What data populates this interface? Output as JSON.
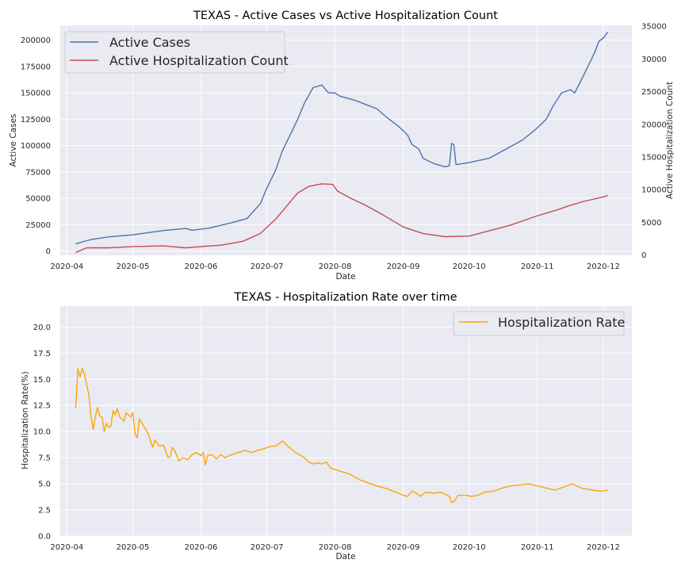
{
  "chart_data": [
    {
      "type": "line",
      "title": "TEXAS - Active Cases vs Active Hospitalization Count",
      "xlabel": "Date",
      "ylabel": "Active Cases",
      "y2label": "Active Hospitalization Count",
      "x_ticks": [
        "2020-04",
        "2020-05",
        "2020-06",
        "2020-07",
        "2020-08",
        "2020-09",
        "2020-10",
        "2020-11",
        "2020-12"
      ],
      "ylim": [
        -4000,
        214000
      ],
      "y_ticks": [
        0,
        25000,
        50000,
        75000,
        100000,
        125000,
        150000,
        175000,
        200000
      ],
      "y2lim": [
        -50,
        35150
      ],
      "y2_ticks": [
        0,
        5000,
        10000,
        15000,
        20000,
        25000,
        30000,
        35000
      ],
      "grid": true,
      "legend_position": "top-left",
      "series": [
        {
          "name": "Active Cases",
          "axis": "left",
          "color": "#4c72b0",
          "points": [
            [
              "2020-04-05",
              7000
            ],
            [
              "2020-04-12",
              11000
            ],
            [
              "2020-04-20",
              13500
            ],
            [
              "2020-05-01",
              15500
            ],
            [
              "2020-05-15",
              19500
            ],
            [
              "2020-05-25",
              21500
            ],
            [
              "2020-05-28",
              19800
            ],
            [
              "2020-06-05",
              22000
            ],
            [
              "2020-06-15",
              27000
            ],
            [
              "2020-06-22",
              31000
            ],
            [
              "2020-06-28",
              45000
            ],
            [
              "2020-07-01",
              60000
            ],
            [
              "2020-07-05",
              77000
            ],
            [
              "2020-07-08",
              95000
            ],
            [
              "2020-07-12",
              112000
            ],
            [
              "2020-07-15",
              125000
            ],
            [
              "2020-07-18",
              140000
            ],
            [
              "2020-07-22",
              155000
            ],
            [
              "2020-07-26",
              157500
            ],
            [
              "2020-07-29",
              150000
            ],
            [
              "2020-08-01",
              150000
            ],
            [
              "2020-08-03",
              147000
            ],
            [
              "2020-08-10",
              143000
            ],
            [
              "2020-08-15",
              139000
            ],
            [
              "2020-08-20",
              135000
            ],
            [
              "2020-08-25",
              126000
            ],
            [
              "2020-08-30",
              118000
            ],
            [
              "2020-09-03",
              110000
            ],
            [
              "2020-09-05",
              101000
            ],
            [
              "2020-09-08",
              97000
            ],
            [
              "2020-09-10",
              88000
            ],
            [
              "2020-09-15",
              83000
            ],
            [
              "2020-09-20",
              80000
            ],
            [
              "2020-09-22",
              81000
            ],
            [
              "2020-09-23",
              102000
            ],
            [
              "2020-09-24",
              101000
            ],
            [
              "2020-09-25",
              82000
            ],
            [
              "2020-10-01",
              84000
            ],
            [
              "2020-10-10",
              88000
            ],
            [
              "2020-10-18",
              97000
            ],
            [
              "2020-10-25",
              105000
            ],
            [
              "2020-10-31",
              115000
            ],
            [
              "2020-11-05",
              125000
            ],
            [
              "2020-11-08",
              137000
            ],
            [
              "2020-11-12",
              150000
            ],
            [
              "2020-11-16",
              153000
            ],
            [
              "2020-11-18",
              150000
            ],
            [
              "2020-11-20",
              158000
            ],
            [
              "2020-11-24",
              175000
            ],
            [
              "2020-11-27",
              188000
            ],
            [
              "2020-11-29",
              199000
            ],
            [
              "2020-12-01",
              202000
            ],
            [
              "2020-12-03",
              207500
            ]
          ]
        },
        {
          "name": "Active Hospitalization Count",
          "axis": "right",
          "color": "#c44e52",
          "points": [
            [
              "2020-04-05",
              400
            ],
            [
              "2020-04-10",
              1100
            ],
            [
              "2020-04-20",
              1100
            ],
            [
              "2020-05-01",
              1300
            ],
            [
              "2020-05-15",
              1400
            ],
            [
              "2020-05-25",
              1100
            ],
            [
              "2020-06-01",
              1300
            ],
            [
              "2020-06-10",
              1500
            ],
            [
              "2020-06-20",
              2100
            ],
            [
              "2020-06-28",
              3300
            ],
            [
              "2020-07-05",
              5500
            ],
            [
              "2020-07-10",
              7500
            ],
            [
              "2020-07-15",
              9500
            ],
            [
              "2020-07-20",
              10500
            ],
            [
              "2020-07-26",
              10900
            ],
            [
              "2020-07-31",
              10800
            ],
            [
              "2020-08-02",
              9800
            ],
            [
              "2020-08-08",
              8700
            ],
            [
              "2020-08-15",
              7600
            ],
            [
              "2020-08-22",
              6300
            ],
            [
              "2020-09-01",
              4300
            ],
            [
              "2020-09-10",
              3300
            ],
            [
              "2020-09-20",
              2800
            ],
            [
              "2020-10-01",
              2900
            ],
            [
              "2020-10-10",
              3700
            ],
            [
              "2020-10-20",
              4600
            ],
            [
              "2020-10-31",
              5900
            ],
            [
              "2020-11-10",
              6900
            ],
            [
              "2020-11-15",
              7500
            ],
            [
              "2020-11-22",
              8200
            ],
            [
              "2020-12-01",
              8900
            ],
            [
              "2020-12-03",
              9100
            ]
          ]
        }
      ]
    },
    {
      "type": "line",
      "title": "TEXAS - Hospitalization Rate over time",
      "xlabel": "Date",
      "ylabel": "Hospitalization Rate(%)",
      "x_ticks": [
        "2020-04",
        "2020-05",
        "2020-06",
        "2020-07",
        "2020-08",
        "2020-09",
        "2020-10",
        "2020-11",
        "2020-12"
      ],
      "ylim": [
        0,
        22
      ],
      "y_ticks": [
        0.0,
        2.5,
        5.0,
        7.5,
        10.0,
        12.5,
        15.0,
        17.5,
        20.0
      ],
      "y_tick_labels": [
        "0.0",
        "2.5",
        "5.0",
        "7.5",
        "10.0",
        "12.5",
        "15.0",
        "17.5",
        "20.0"
      ],
      "grid": true,
      "legend_position": "top-right",
      "series": [
        {
          "name": "Hospitalization Rate",
          "color": "#ffa500",
          "points": [
            [
              "2020-04-05",
              12.2
            ],
            [
              "2020-04-06",
              16.0
            ],
            [
              "2020-04-07",
              15.2
            ],
            [
              "2020-04-08",
              16.1
            ],
            [
              "2020-04-09",
              15.5
            ],
            [
              "2020-04-11",
              13.5
            ],
            [
              "2020-04-12",
              11.5
            ],
            [
              "2020-04-13",
              10.2
            ],
            [
              "2020-04-14",
              11.5
            ],
            [
              "2020-04-15",
              12.3
            ],
            [
              "2020-04-16",
              11.5
            ],
            [
              "2020-04-17",
              11.4
            ],
            [
              "2020-04-18",
              10.0
            ],
            [
              "2020-04-19",
              10.8
            ],
            [
              "2020-04-20",
              10.4
            ],
            [
              "2020-04-21",
              10.5
            ],
            [
              "2020-04-22",
              12.0
            ],
            [
              "2020-04-23",
              11.6
            ],
            [
              "2020-04-24",
              12.2
            ],
            [
              "2020-04-25",
              11.4
            ],
            [
              "2020-04-27",
              11.0
            ],
            [
              "2020-04-28",
              11.8
            ],
            [
              "2020-04-30",
              11.4
            ],
            [
              "2020-05-01",
              11.8
            ],
            [
              "2020-05-02",
              9.8
            ],
            [
              "2020-05-03",
              9.4
            ],
            [
              "2020-05-04",
              11.2
            ],
            [
              "2020-05-06",
              10.5
            ],
            [
              "2020-05-08",
              9.8
            ],
            [
              "2020-05-10",
              8.5
            ],
            [
              "2020-05-11",
              9.2
            ],
            [
              "2020-05-13",
              8.6
            ],
            [
              "2020-05-15",
              8.7
            ],
            [
              "2020-05-17",
              7.5
            ],
            [
              "2020-05-18",
              7.6
            ],
            [
              "2020-05-19",
              8.5
            ],
            [
              "2020-05-20",
              8.2
            ],
            [
              "2020-05-22",
              7.2
            ],
            [
              "2020-05-24",
              7.5
            ],
            [
              "2020-05-26",
              7.3
            ],
            [
              "2020-05-28",
              7.8
            ],
            [
              "2020-05-30",
              8.0
            ],
            [
              "2020-06-01",
              7.7
            ],
            [
              "2020-06-02",
              8.0
            ],
            [
              "2020-06-03",
              6.8
            ],
            [
              "2020-06-04",
              7.7
            ],
            [
              "2020-06-06",
              7.8
            ],
            [
              "2020-06-08",
              7.4
            ],
            [
              "2020-06-10",
              7.8
            ],
            [
              "2020-06-12",
              7.5
            ],
            [
              "2020-06-15",
              7.8
            ],
            [
              "2020-06-18",
              8.0
            ],
            [
              "2020-06-21",
              8.2
            ],
            [
              "2020-06-24",
              8.0
            ],
            [
              "2020-06-27",
              8.2
            ],
            [
              "2020-06-30",
              8.4
            ],
            [
              "2020-07-03",
              8.6
            ],
            [
              "2020-07-05",
              8.6
            ],
            [
              "2020-07-08",
              9.1
            ],
            [
              "2020-07-10",
              8.7
            ],
            [
              "2020-07-14",
              8.0
            ],
            [
              "2020-07-18",
              7.5
            ],
            [
              "2020-07-20",
              7.1
            ],
            [
              "2020-07-22",
              6.9
            ],
            [
              "2020-07-24",
              7.0
            ],
            [
              "2020-07-26",
              6.9
            ],
            [
              "2020-07-28",
              7.1
            ],
            [
              "2020-07-30",
              6.5
            ],
            [
              "2020-08-02",
              6.3
            ],
            [
              "2020-08-05",
              6.1
            ],
            [
              "2020-08-08",
              5.9
            ],
            [
              "2020-08-12",
              5.4
            ],
            [
              "2020-08-16",
              5.1
            ],
            [
              "2020-08-20",
              4.8
            ],
            [
              "2020-08-25",
              4.5
            ],
            [
              "2020-08-30",
              4.1
            ],
            [
              "2020-09-01",
              3.9
            ],
            [
              "2020-09-03",
              3.8
            ],
            [
              "2020-09-05",
              4.3
            ],
            [
              "2020-09-07",
              4.1
            ],
            [
              "2020-09-09",
              3.8
            ],
            [
              "2020-09-11",
              4.2
            ],
            [
              "2020-09-15",
              4.1
            ],
            [
              "2020-09-18",
              4.2
            ],
            [
              "2020-09-20",
              4.0
            ],
            [
              "2020-09-22",
              3.8
            ],
            [
              "2020-09-23",
              3.2
            ],
            [
              "2020-09-24",
              3.3
            ],
            [
              "2020-09-26",
              3.9
            ],
            [
              "2020-09-30",
              3.9
            ],
            [
              "2020-10-02",
              3.8
            ],
            [
              "2020-10-05",
              3.9
            ],
            [
              "2020-10-08",
              4.2
            ],
            [
              "2020-10-12",
              4.3
            ],
            [
              "2020-10-16",
              4.6
            ],
            [
              "2020-10-20",
              4.8
            ],
            [
              "2020-10-24",
              4.9
            ],
            [
              "2020-10-28",
              5.0
            ],
            [
              "2020-11-01",
              4.8
            ],
            [
              "2020-11-05",
              4.6
            ],
            [
              "2020-11-09",
              4.4
            ],
            [
              "2020-11-13",
              4.7
            ],
            [
              "2020-11-17",
              5.0
            ],
            [
              "2020-11-21",
              4.6
            ],
            [
              "2020-11-26",
              4.4
            ],
            [
              "2020-11-30",
              4.3
            ],
            [
              "2020-12-03",
              4.4
            ]
          ]
        }
      ]
    }
  ]
}
